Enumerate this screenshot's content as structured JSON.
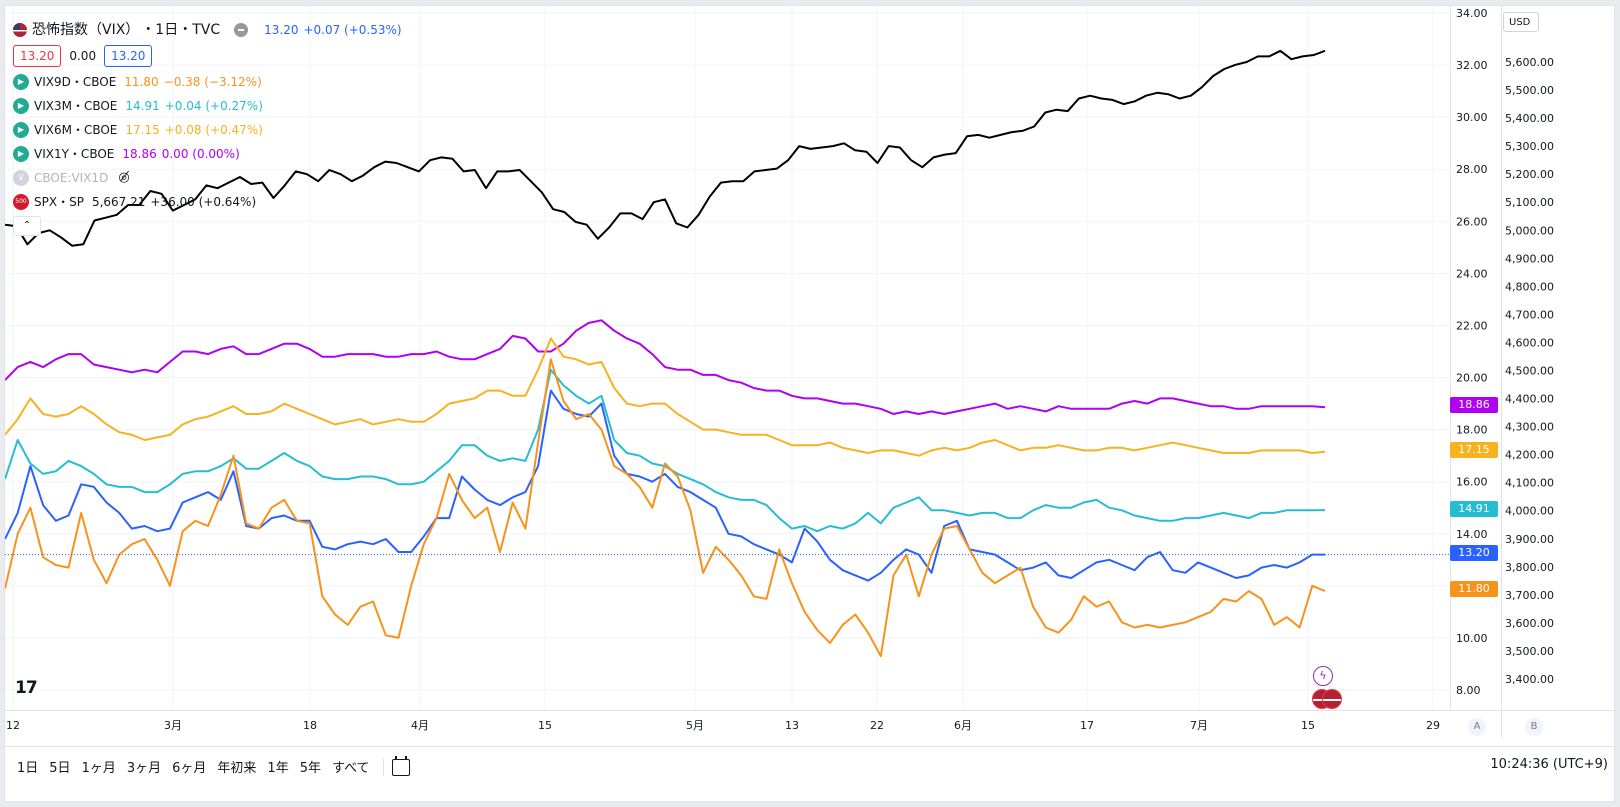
{
  "header": {
    "title": "恐怖指数（VIX）",
    "interval": "・1日・TVC",
    "value": "13.20",
    "change": "+0.07 (+0.53%)",
    "bid": "13.20",
    "spread": "0.00",
    "ask": "13.20"
  },
  "legend": [
    {
      "symbol": "VIX9D・CBOE",
      "value": "11.80",
      "change": "−0.38 (−3.12%)",
      "color": "#f7931a"
    },
    {
      "symbol": "VIX3M・CBOE",
      "value": "14.91",
      "change": "+0.04 (+0.27%)",
      "color": "#26bcd4"
    },
    {
      "symbol": "VIX6M・CBOE",
      "value": "17.15",
      "change": "+0.08 (+0.47%)",
      "color": "#f6b21f"
    },
    {
      "symbol": "VIX1Y・CBOE",
      "value": "18.86",
      "change": "0.00 (0.00%)",
      "color": "#b000f0"
    },
    {
      "symbol": "CBOE:VIX1D",
      "value": "",
      "change": "",
      "color": "#b2b5be"
    },
    {
      "symbol": "SPX・SP",
      "value": "5,667.21",
      "change": "+36.00 (+0.64%)",
      "color": "#131722"
    }
  ],
  "spx_badge": "500",
  "currency": "USD",
  "left_axis": {
    "ticks": [
      "34.00",
      "32.00",
      "30.00",
      "28.00",
      "26.00",
      "24.00",
      "22.00",
      "20.00",
      "18.00",
      "16.00",
      "14.00",
      "12.00",
      "10.00",
      "8.00"
    ]
  },
  "right_axis": {
    "ticks": [
      "5,600.00",
      "5,500.00",
      "5,400.00",
      "5,300.00",
      "5,200.00",
      "5,100.00",
      "5,000.00",
      "4,900.00",
      "4,800.00",
      "4,700.00",
      "4,600.00",
      "4,500.00",
      "4,400.00",
      "4,300.00",
      "4,200.00",
      "4,100.00",
      "4,000.00",
      "3,900.00",
      "3,800.00",
      "3,700.00",
      "3,600.00",
      "3,500.00",
      "3,400.00"
    ]
  },
  "x_axis": {
    "labels": [
      "12",
      "3月",
      "18",
      "4月",
      "15",
      "5月",
      "13",
      "22",
      "6月",
      "17",
      "7月",
      "15",
      "29"
    ]
  },
  "axis_buttons": [
    "A",
    "B"
  ],
  "price_badges": [
    {
      "label": "18.86",
      "color": "#b000f0"
    },
    {
      "label": "17.15",
      "color": "#f6b21f"
    },
    {
      "label": "14.91",
      "color": "#26bcd4"
    },
    {
      "label": "13.20",
      "color": "#2962ff"
    },
    {
      "label": "11.80",
      "color": "#f7931a"
    }
  ],
  "timeframes": [
    "1日",
    "5日",
    "1ヶ月",
    "3ヶ月",
    "6ヶ月",
    "年初来",
    "1年",
    "5年",
    "すべて"
  ],
  "clock": "10:24:36 (UTC+9)",
  "logo": "17",
  "chart_data": {
    "type": "line",
    "ylim_left": [
      7,
      34.1
    ],
    "ylim_spx": [
      3415,
      5640
    ],
    "x_index_range": [
      0,
      101
    ],
    "series": [
      {
        "name": "SPX・SP",
        "axis": "right",
        "color": "#000000",
        "values": [
          5020,
          5015,
          4950,
          4990,
          5000,
          4975,
          4945,
          4950,
          5035,
          5045,
          5055,
          5090,
          5090,
          5140,
          5130,
          5070,
          5090,
          5110,
          5160,
          5150,
          5170,
          5190,
          5165,
          5170,
          5115,
          5160,
          5210,
          5200,
          5175,
          5215,
          5200,
          5175,
          5195,
          5225,
          5245,
          5240,
          5225,
          5210,
          5250,
          5260,
          5255,
          5210,
          5215,
          5150,
          5210,
          5210,
          5215,
          5175,
          5135,
          5075,
          5065,
          5030,
          5020,
          4970,
          5010,
          5060,
          5060,
          5040,
          5100,
          5110,
          5025,
          5010,
          5055,
          5120,
          5170,
          5175,
          5175,
          5210,
          5215,
          5220,
          5250,
          5300,
          5290,
          5295,
          5300,
          5310,
          5285,
          5280,
          5240,
          5300,
          5295,
          5250,
          5225,
          5260,
          5270,
          5275,
          5335,
          5340,
          5330,
          5340,
          5350,
          5355,
          5370,
          5420,
          5430,
          5425,
          5470,
          5480,
          5470,
          5465,
          5450,
          5460,
          5480,
          5490,
          5485,
          5470,
          5480,
          5510,
          5550,
          5575,
          5590,
          5600,
          5620,
          5620,
          5640,
          5610,
          5620,
          5625,
          5640
        ]
      },
      {
        "name": "VIX1Y・CBOE",
        "axis": "left",
        "color": "#b000f0",
        "values": [
          19.9,
          20.4,
          20.6,
          20.4,
          20.7,
          20.9,
          20.9,
          20.5,
          20.4,
          20.3,
          20.2,
          20.3,
          20.2,
          20.6,
          21.0,
          21.0,
          20.9,
          21.1,
          21.2,
          20.9,
          20.9,
          21.1,
          21.3,
          21.3,
          21.1,
          20.8,
          20.8,
          20.9,
          20.9,
          20.9,
          20.8,
          20.8,
          20.9,
          20.9,
          21.0,
          20.8,
          20.7,
          20.7,
          20.9,
          21.1,
          21.6,
          21.5,
          21.0,
          21.0,
          21.3,
          21.8,
          22.1,
          22.2,
          21.8,
          21.5,
          21.3,
          20.9,
          20.4,
          20.3,
          20.3,
          20.1,
          20.1,
          19.9,
          19.8,
          19.6,
          19.5,
          19.5,
          19.3,
          19.2,
          19.2,
          19.1,
          19.0,
          19.0,
          18.9,
          18.8,
          18.6,
          18.7,
          18.6,
          18.7,
          18.6,
          18.7,
          18.8,
          18.9,
          19.0,
          18.8,
          18.9,
          18.8,
          18.7,
          18.9,
          18.8,
          18.8,
          18.8,
          18.8,
          19.0,
          19.1,
          19.0,
          19.2,
          19.2,
          19.1,
          19.0,
          18.9,
          18.9,
          18.8,
          18.8,
          18.9,
          18.9,
          18.9,
          18.9,
          18.9,
          18.86
        ]
      },
      {
        "name": "VIX6M・CBOE",
        "axis": "left",
        "color": "#f6b21f",
        "values": [
          17.8,
          18.4,
          19.2,
          18.6,
          18.5,
          18.6,
          18.9,
          18.6,
          18.2,
          17.9,
          17.8,
          17.6,
          17.7,
          17.8,
          18.2,
          18.4,
          18.5,
          18.7,
          18.9,
          18.6,
          18.6,
          18.7,
          19.0,
          18.8,
          18.6,
          18.4,
          18.2,
          18.3,
          18.4,
          18.2,
          18.3,
          18.4,
          18.3,
          18.3,
          18.6,
          19.0,
          19.1,
          19.2,
          19.5,
          19.5,
          19.3,
          19.3,
          20.3,
          21.5,
          20.8,
          20.7,
          20.5,
          20.6,
          19.6,
          19.0,
          18.9,
          19.0,
          19.0,
          18.6,
          18.3,
          18.0,
          18.0,
          17.9,
          17.8,
          17.8,
          17.8,
          17.6,
          17.4,
          17.4,
          17.4,
          17.5,
          17.3,
          17.2,
          17.1,
          17.2,
          17.2,
          17.1,
          17.0,
          17.2,
          17.3,
          17.2,
          17.3,
          17.5,
          17.6,
          17.4,
          17.2,
          17.3,
          17.3,
          17.4,
          17.3,
          17.2,
          17.2,
          17.3,
          17.3,
          17.2,
          17.3,
          17.4,
          17.5,
          17.4,
          17.3,
          17.2,
          17.1,
          17.1,
          17.1,
          17.2,
          17.2,
          17.2,
          17.2,
          17.1,
          17.15
        ]
      },
      {
        "name": "VIX3M・CBOE",
        "axis": "left",
        "color": "#26bcd4",
        "values": [
          16.1,
          17.6,
          16.7,
          16.3,
          16.4,
          16.8,
          16.6,
          16.3,
          15.9,
          15.8,
          15.8,
          15.6,
          15.6,
          15.9,
          16.3,
          16.4,
          16.4,
          16.6,
          16.9,
          16.5,
          16.5,
          16.8,
          17.1,
          16.8,
          16.6,
          16.2,
          16.1,
          16.1,
          16.2,
          16.2,
          16.1,
          15.9,
          15.9,
          16.0,
          16.4,
          16.8,
          17.4,
          17.4,
          17.0,
          16.8,
          16.9,
          16.8,
          18.0,
          20.3,
          19.7,
          19.3,
          19.0,
          19.3,
          17.6,
          17.1,
          17.0,
          16.7,
          16.6,
          16.3,
          16.1,
          15.9,
          15.6,
          15.4,
          15.3,
          15.3,
          15.1,
          14.6,
          14.2,
          14.3,
          14.1,
          14.3,
          14.2,
          14.4,
          14.8,
          14.4,
          15.0,
          15.2,
          15.4,
          14.9,
          14.9,
          14.8,
          14.7,
          14.8,
          14.8,
          14.6,
          14.6,
          14.9,
          15.1,
          15.0,
          15.0,
          15.2,
          15.3,
          15.0,
          14.9,
          14.7,
          14.6,
          14.5,
          14.5,
          14.6,
          14.6,
          14.7,
          14.8,
          14.7,
          14.6,
          14.8,
          14.8,
          14.9,
          14.9,
          14.9,
          14.91
        ]
      },
      {
        "name": "VIX・TVC",
        "axis": "left",
        "color": "#2962ff",
        "values": [
          13.8,
          14.8,
          16.6,
          15.1,
          14.5,
          14.7,
          15.9,
          15.8,
          15.2,
          14.8,
          14.2,
          14.3,
          14.1,
          14.2,
          15.2,
          15.4,
          15.6,
          15.3,
          16.4,
          14.3,
          14.2,
          14.6,
          14.7,
          14.5,
          14.5,
          13.5,
          13.4,
          13.6,
          13.7,
          13.6,
          13.8,
          13.3,
          13.3,
          13.9,
          14.6,
          14.6,
          16.2,
          15.7,
          15.3,
          15.1,
          15.4,
          15.6,
          16.6,
          19.5,
          18.8,
          18.6,
          18.5,
          19.0,
          17.0,
          16.3,
          16.2,
          16.0,
          16.3,
          15.8,
          15.6,
          15.3,
          15.0,
          14.0,
          13.9,
          13.6,
          13.4,
          13.2,
          12.9,
          14.2,
          13.7,
          13.0,
          12.6,
          12.4,
          12.2,
          12.5,
          13.0,
          13.4,
          13.2,
          12.5,
          14.3,
          14.5,
          13.4,
          13.3,
          13.2,
          12.9,
          12.6,
          12.7,
          12.9,
          12.4,
          12.3,
          12.6,
          12.9,
          13.0,
          12.8,
          12.6,
          13.1,
          13.3,
          12.6,
          12.5,
          12.9,
          12.7,
          12.5,
          12.3,
          12.4,
          12.7,
          12.8,
          12.7,
          12.9,
          13.2,
          13.2
        ]
      },
      {
        "name": "VIX9D・CBOE",
        "axis": "left",
        "color": "#f7931a",
        "values": [
          11.9,
          14.0,
          15.0,
          13.1,
          12.8,
          12.7,
          14.8,
          13.0,
          12.1,
          13.2,
          13.6,
          13.8,
          13.0,
          12.0,
          14.1,
          14.5,
          14.3,
          15.5,
          17.0,
          14.4,
          14.2,
          15.0,
          15.3,
          14.5,
          14.4,
          11.6,
          10.9,
          10.5,
          11.2,
          11.4,
          10.1,
          10.0,
          12.0,
          13.6,
          14.6,
          16.3,
          15.3,
          14.6,
          15.0,
          13.3,
          15.2,
          14.2,
          17.5,
          20.7,
          19.1,
          18.4,
          18.6,
          18.0,
          16.6,
          16.3,
          15.8,
          15.0,
          16.7,
          16.2,
          14.9,
          12.5,
          13.5,
          13.0,
          12.4,
          11.6,
          11.5,
          13.4,
          12.1,
          11.0,
          10.3,
          9.8,
          10.5,
          10.9,
          10.2,
          9.3,
          12.4,
          13.2,
          11.6,
          13.2,
          14.2,
          14.3,
          13.4,
          12.5,
          12.1,
          12.4,
          12.7,
          11.2,
          10.4,
          10.2,
          10.7,
          11.6,
          11.2,
          11.4,
          10.6,
          10.4,
          10.5,
          10.4,
          10.5,
          10.6,
          10.8,
          11.0,
          11.5,
          11.4,
          11.8,
          11.5,
          10.5,
          10.8,
          10.4,
          12.0,
          11.8
        ]
      }
    ]
  }
}
